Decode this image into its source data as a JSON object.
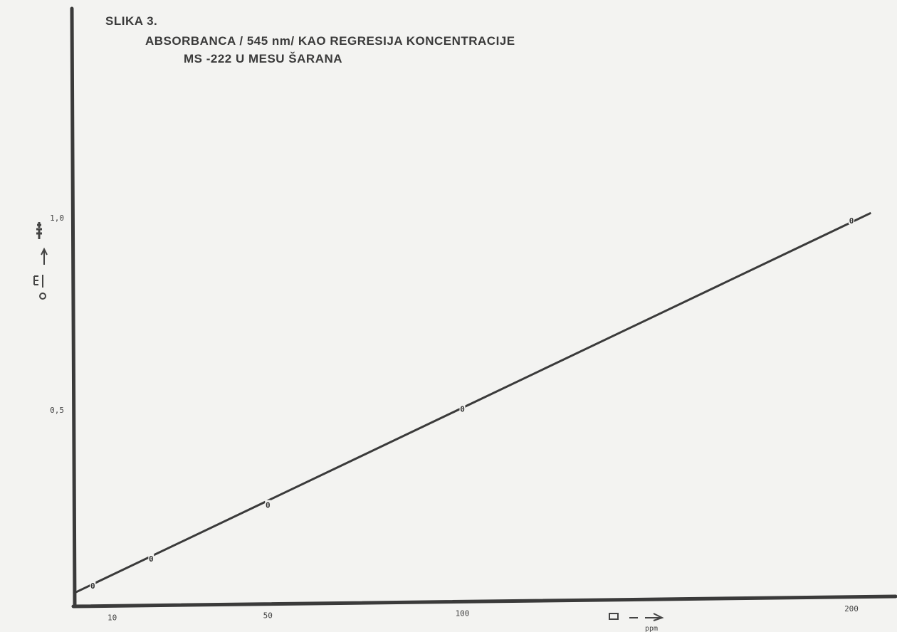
{
  "figure_label": "SLIKA 3.",
  "title_line1": "ABSORBANCA / 545 nm/ KAO REGRESIJA KONCENTRACIJE",
  "title_line2": "MS -222 U MESU ŠARANA",
  "chart_data": {
    "type": "line",
    "title": "ABSORBANCA / 545 nm/ KAO REGRESIJA KONCENTRACIJE MS -222 U MESU ŠARANA",
    "xlabel": "",
    "ylabel": "",
    "xlim": [
      0,
      210
    ],
    "ylim": [
      0,
      1.1
    ],
    "x_ticks": [
      {
        "value": 10,
        "label": "10"
      },
      {
        "value": 50,
        "label": "50"
      },
      {
        "value": 100,
        "label": "100"
      },
      {
        "value": 200,
        "label": "200"
      }
    ],
    "y_ticks": [
      {
        "value": 0.5,
        "label": "0,5"
      },
      {
        "value": 1.0,
        "label": "1,0"
      }
    ],
    "series": [
      {
        "x": [
          5,
          20,
          50,
          100,
          200
        ],
        "y": [
          0.05,
          0.12,
          0.26,
          0.51,
          1.0
        ]
      }
    ],
    "regression_line": {
      "x": [
        0,
        205
      ],
      "y": [
        0.03,
        1.02
      ]
    },
    "marker": "0",
    "grid": false,
    "line_color": "#3a3a3a"
  }
}
